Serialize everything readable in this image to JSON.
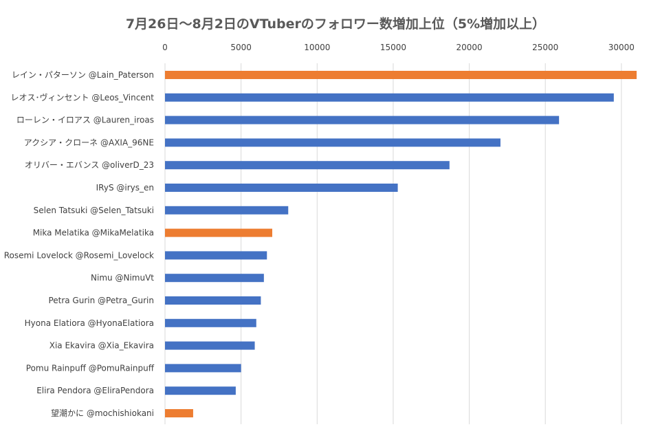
{
  "chart_data": {
    "type": "bar",
    "orientation": "horizontal",
    "title": "7月26日～8月2日のVTuberのフォロワー数増加上位（5%増加以上）",
    "xlabel": "",
    "ylabel": "",
    "xlim": [
      0,
      31000
    ],
    "ticks": [
      0,
      5000,
      10000,
      15000,
      20000,
      25000,
      30000
    ],
    "tick_labels": [
      "0",
      "5000",
      "10000",
      "15000",
      "20000",
      "25000",
      "30000"
    ],
    "axis_position": "top",
    "grid": true,
    "legend": "none",
    "colors": {
      "default": "#4472c4",
      "highlight": "#ed7d31",
      "grid": "#d9d9d9",
      "text": "#404040",
      "title": "#595959"
    },
    "categories": [
      "レイン・パターソン @Lain_Paterson",
      "レオス･ヴィンセント @Leos_Vincent",
      "ローレン・イロアス @Lauren_iroas",
      "アクシア・クローネ @AXIA_96NE",
      "オリバー・エバンス @oliverD_23",
      "IRyS @irys_en",
      "Selen Tatsuki @Selen_Tatsuki",
      "Mika Melatika @MikaMelatika",
      "Rosemi Lovelock @Rosemi_Lovelock",
      "Nimu @NimuVt",
      "Petra Gurin @Petra_Gurin",
      "Hyona Elatiora @HyonaElatiora",
      "Xia Ekavira @Xia_Ekavira",
      "Pomu Rainpuff @PomuRainpuff",
      "Elira Pendora @EliraPendora",
      "望潮かに @mochishiokani"
    ],
    "values": [
      31000,
      29500,
      25900,
      22050,
      18700,
      15300,
      8100,
      7050,
      6700,
      6500,
      6300,
      6000,
      5900,
      5000,
      4650,
      1850
    ],
    "highlighted": [
      true,
      false,
      false,
      false,
      false,
      false,
      false,
      true,
      false,
      false,
      false,
      false,
      false,
      false,
      false,
      true
    ]
  }
}
